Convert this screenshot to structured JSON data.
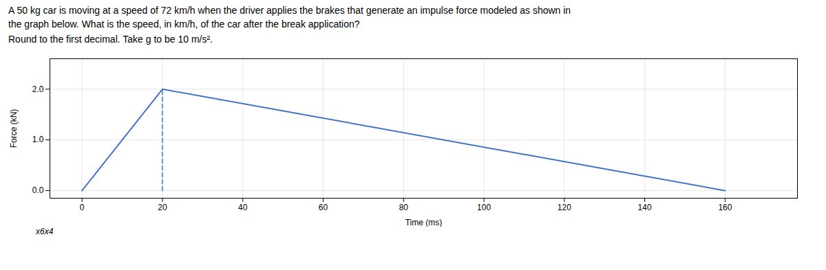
{
  "chart_data": {
    "type": "line",
    "title": "A 50 kg car is moving at a speed of 72 km/h when the driver applies the brakes that generate an impulse force modeled as shown in\nthe graph below. What is the speed, in km/h, of the car after the break application?",
    "subtitle": "Round to the first decimal. Take g to be 10 m/s².",
    "annotations": [
      "x6x4"
    ],
    "xlabel": "Time (ms)",
    "ylabel": "Force (kN)",
    "series": [
      {
        "x": [
          0,
          20,
          160
        ],
        "values": [
          0,
          2,
          0
        ],
        "color": "#4472C4",
        "line_style": "solid"
      },
      {
        "x": [
          20,
          20
        ],
        "values": [
          0,
          2
        ],
        "color": "#6699CC",
        "line_style": "dashed"
      }
    ],
    "xlim": [
      -8,
      178
    ],
    "ylim": [
      -0.15,
      2.6
    ],
    "xticks": [
      0,
      20,
      40,
      60,
      80,
      100,
      120,
      140,
      160
    ],
    "yticks": [
      0,
      1,
      2
    ],
    "grid": true
  }
}
